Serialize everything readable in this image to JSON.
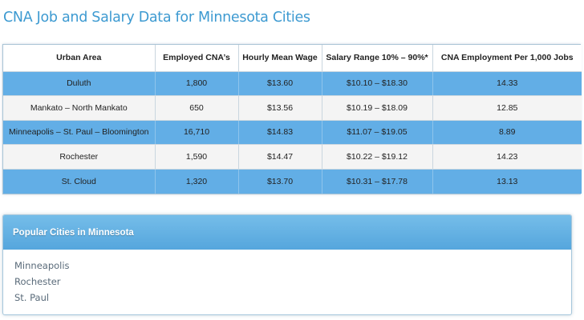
{
  "page": {
    "title": "CNA Job and Salary Data for Minnesota Cities"
  },
  "table": {
    "headers": [
      "Urban Area",
      "Employed CNA’s",
      "Hourly Mean Wage",
      "Salary Range 10% – 90%*",
      "CNA Employment Per 1,000 Jobs"
    ],
    "rows": [
      [
        "Duluth",
        "1,800",
        "$13.60",
        "$10.10 – $18.30",
        "14.33"
      ],
      [
        "Mankato – North Mankato",
        "650",
        "$13.56",
        "$10.19 – $18.09",
        "12.85"
      ],
      [
        "Minneapolis – St. Paul – Bloomington",
        "16,710",
        "$14.83",
        "$11.07 – $19.05",
        "8.89"
      ],
      [
        "Rochester",
        "1,590",
        "$14.47",
        "$10.22 – $19.12",
        "14.23"
      ],
      [
        "St. Cloud",
        "1,320",
        "$13.70",
        "$10.31 – $17.78",
        "13.13"
      ]
    ]
  },
  "popular_cities": {
    "title": "Popular Cities in Minnesota",
    "items": [
      "Minneapolis",
      "Rochester",
      "St. Paul"
    ]
  },
  "colors": {
    "title": "#3d9ad1",
    "row_blue": "#62aee6",
    "row_light": "#f4f4f4",
    "panel_header": "#5fb0e3"
  }
}
